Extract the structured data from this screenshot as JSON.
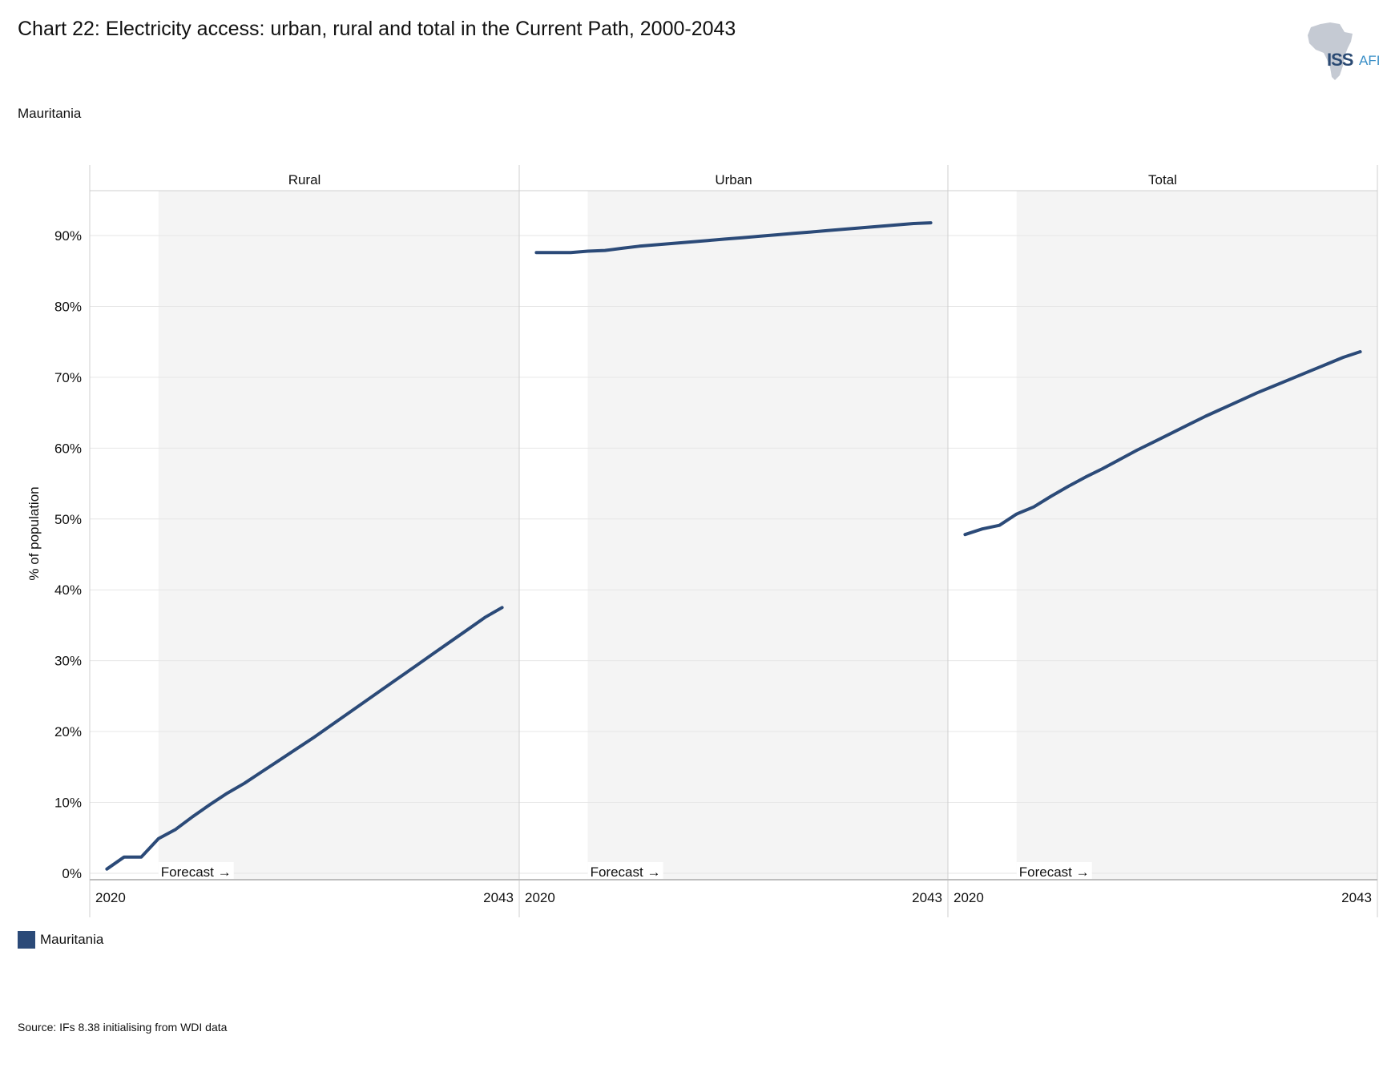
{
  "title": "Chart 22: Electricity access: urban, rural and total in the Current Path, 2000-2043",
  "subtitle": "Mauritania",
  "source": "Source: IFs 8.38 initialising from WDI data",
  "logo": {
    "iss": "ISS",
    "afi": "AFI"
  },
  "legend": {
    "label": "Mauritania",
    "color": "#2b4a78"
  },
  "chart_data": {
    "type": "line",
    "ylabel": "% of population",
    "ylim": [
      0,
      100
    ],
    "yticks": [
      0,
      10,
      20,
      30,
      40,
      50,
      60,
      70,
      80,
      90
    ],
    "ytick_labels": [
      "0%",
      "10%",
      "20%",
      "30%",
      "40%",
      "50%",
      "60%",
      "70%",
      "80%",
      "90%"
    ],
    "xlim": [
      2019,
      2044
    ],
    "xtick_labels": [
      "2020",
      "2043"
    ],
    "forecast_start": 2023,
    "forecast_label": "Forecast →",
    "grid": true,
    "line_color": "#2b4a78",
    "panels": [
      {
        "name": "Rural",
        "x": [
          2020,
          2021,
          2022,
          2023,
          2024,
          2025,
          2026,
          2027,
          2028,
          2029,
          2030,
          2031,
          2032,
          2033,
          2034,
          2035,
          2036,
          2037,
          2038,
          2039,
          2040,
          2041,
          2042,
          2043
        ],
        "values": [
          0.6,
          2.3,
          2.3,
          4.9,
          6.2,
          8.0,
          9.7,
          11.3,
          12.7,
          14.3,
          15.9,
          17.5,
          19.1,
          20.8,
          22.5,
          24.2,
          25.9,
          27.6,
          29.3,
          31.0,
          32.7,
          34.4,
          36.1,
          37.5
        ]
      },
      {
        "name": "Urban",
        "x": [
          2020,
          2021,
          2022,
          2023,
          2024,
          2025,
          2026,
          2027,
          2028,
          2029,
          2030,
          2031,
          2032,
          2033,
          2034,
          2035,
          2036,
          2037,
          2038,
          2039,
          2040,
          2041,
          2042,
          2043
        ],
        "values": [
          87.6,
          87.6,
          87.6,
          87.8,
          87.9,
          88.2,
          88.5,
          88.7,
          88.9,
          89.1,
          89.3,
          89.5,
          89.7,
          89.9,
          90.1,
          90.3,
          90.5,
          90.7,
          90.9,
          91.1,
          91.3,
          91.5,
          91.7,
          91.8
        ]
      },
      {
        "name": "Total",
        "x": [
          2020,
          2021,
          2022,
          2023,
          2024,
          2025,
          2026,
          2027,
          2028,
          2029,
          2030,
          2031,
          2032,
          2033,
          2034,
          2035,
          2036,
          2037,
          2038,
          2039,
          2040,
          2041,
          2042,
          2043
        ],
        "values": [
          47.8,
          48.6,
          49.1,
          50.7,
          51.7,
          53.2,
          54.6,
          55.9,
          57.1,
          58.4,
          59.7,
          60.9,
          62.1,
          63.3,
          64.5,
          65.6,
          66.7,
          67.8,
          68.8,
          69.8,
          70.8,
          71.8,
          72.8,
          73.6
        ]
      }
    ]
  }
}
